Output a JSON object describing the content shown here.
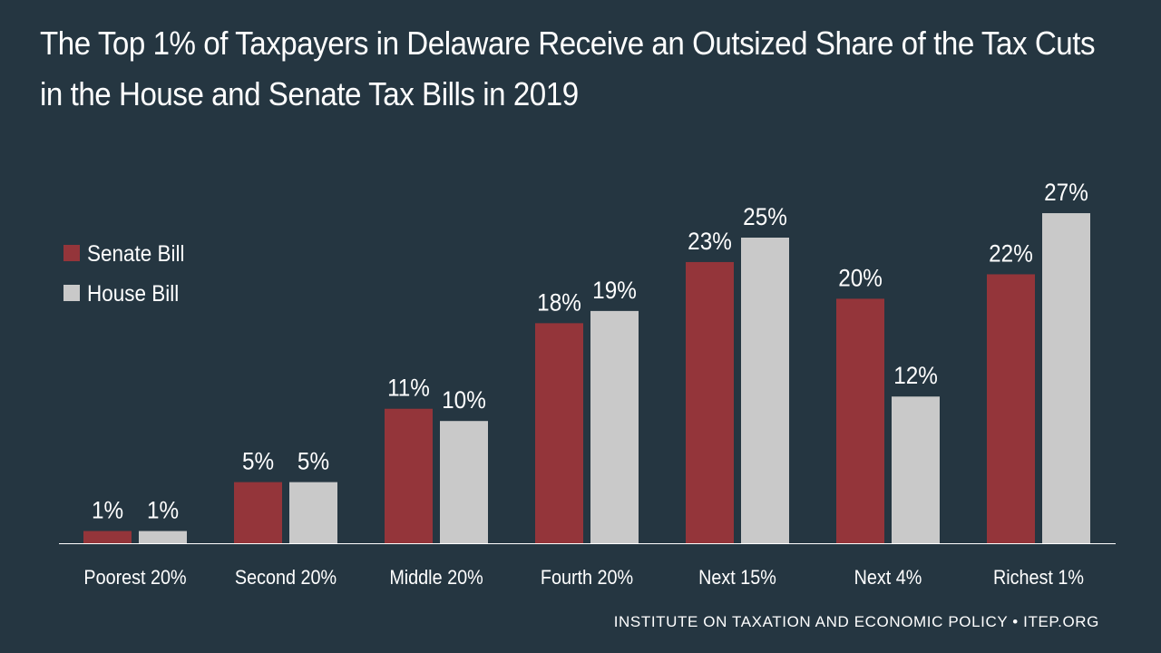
{
  "title": {
    "line1": "The Top 1% of Taxpayers in Delaware Receive an Outsized Share of the Tax Cuts",
    "line2": "in the House and Senate Tax Bills in 2019"
  },
  "footer": {
    "credit": "INSTITUTE ON TAXATION AND ECONOMIC POLICY • ITEP.ORG"
  },
  "colors": {
    "background": "#253641",
    "senate": "#94353A",
    "house": "#C9C9C9",
    "axis": "#FFFFFF",
    "text": "#FFFFFF"
  },
  "chart_data": {
    "type": "bar",
    "title": "The Top 1% of Taxpayers in Delaware Receive an Outsized Share of the Tax Cuts in the House and Senate Tax Bills in 2019",
    "xlabel": "",
    "ylabel": "",
    "ylim": [
      0,
      30
    ],
    "grid": false,
    "legend": "left",
    "categories": [
      "Poorest 20%",
      "Second 20%",
      "Middle 20%",
      "Fourth 20%",
      "Next 15%",
      "Next 4%",
      "Richest 1%"
    ],
    "series": [
      {
        "name": "Senate Bill",
        "color": "#94353A",
        "values": [
          1,
          5,
          11,
          18,
          23,
          20,
          22
        ]
      },
      {
        "name": "House Bill",
        "color": "#C9C9C9",
        "values": [
          1,
          5,
          10,
          19,
          25,
          12,
          27
        ]
      }
    ],
    "value_suffix": "%"
  }
}
